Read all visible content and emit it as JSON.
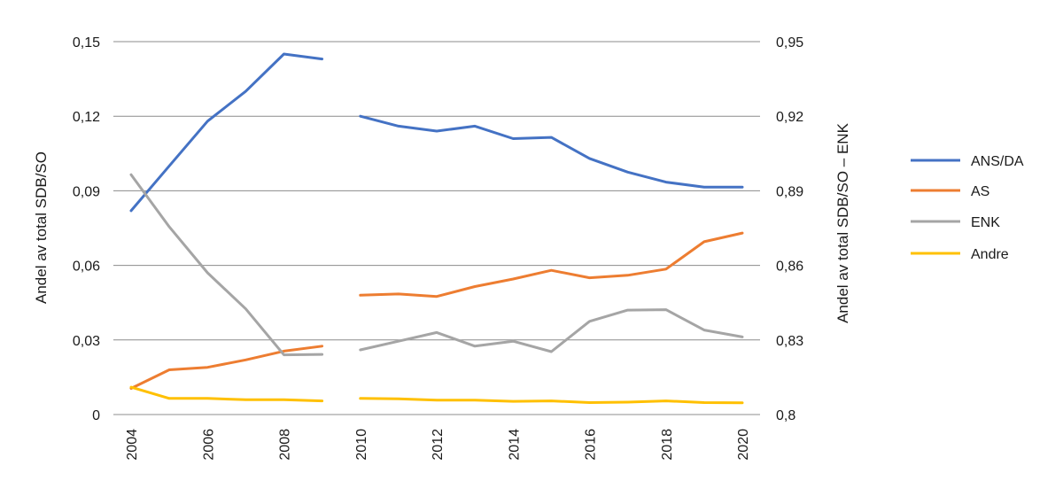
{
  "chart_data": {
    "type": "line",
    "x": [
      2004,
      2005,
      2006,
      2007,
      2008,
      2009,
      2010,
      2011,
      2012,
      2013,
      2014,
      2015,
      2016,
      2017,
      2018,
      2019,
      2020
    ],
    "x_tick_labels": [
      "2004",
      "2006",
      "2008",
      "2010",
      "2012",
      "2014",
      "2016",
      "2018",
      "2020"
    ],
    "left_axis": {
      "label": "Andel av total SDB/SO",
      "range": [
        0,
        0.15
      ],
      "ticks": [
        0,
        0.03,
        0.06,
        0.09,
        0.12,
        0.15
      ],
      "tick_labels": [
        "0",
        "0,03",
        "0,06",
        "0,09",
        "0,12",
        "0,15"
      ]
    },
    "right_axis": {
      "label": "Andel av total SDB/SO – ENK",
      "range": [
        0.8,
        0.95
      ],
      "ticks": [
        0.8,
        0.83,
        0.86,
        0.89,
        0.92,
        0.95
      ],
      "tick_labels": [
        "0,8",
        "0,83",
        "0,86",
        "0,89",
        "0,92",
        "0,95"
      ]
    },
    "grid": true,
    "legend_position": "right",
    "series": [
      {
        "name": "ANS/DA",
        "color": "#4472c4",
        "axis": "left",
        "values": [
          0.082,
          0.1,
          0.118,
          0.13,
          0.145,
          0.143,
          0.12,
          0.116,
          0.114,
          0.116,
          0.111,
          0.1115,
          0.103,
          0.0975,
          0.0935,
          0.0915,
          0.0915
        ]
      },
      {
        "name": "AS",
        "color": "#ed7d31",
        "axis": "left",
        "values": [
          0.0105,
          0.018,
          0.019,
          0.022,
          0.0255,
          0.0275,
          0.048,
          0.0485,
          0.0475,
          0.0515,
          0.0545,
          0.058,
          0.055,
          0.056,
          0.0585,
          0.0695,
          0.073
        ]
      },
      {
        "name": "ENK",
        "color": "#a5a5a5",
        "axis": "right",
        "values": [
          0.8965,
          0.8755,
          0.857,
          0.8425,
          0.824,
          0.8242,
          0.826,
          0.8295,
          0.833,
          0.8275,
          0.8295,
          0.8253,
          0.8375,
          0.842,
          0.8422,
          0.834,
          0.8312
        ]
      },
      {
        "name": "Andre",
        "color": "#ffc000",
        "axis": "left",
        "values": [
          0.011,
          0.0065,
          0.0065,
          0.006,
          0.006,
          0.0055,
          0.0065,
          0.0063,
          0.0058,
          0.0058,
          0.0053,
          0.0055,
          0.0048,
          0.005,
          0.0055,
          0.0048,
          0.0047
        ]
      }
    ],
    "break_after": 2009
  }
}
